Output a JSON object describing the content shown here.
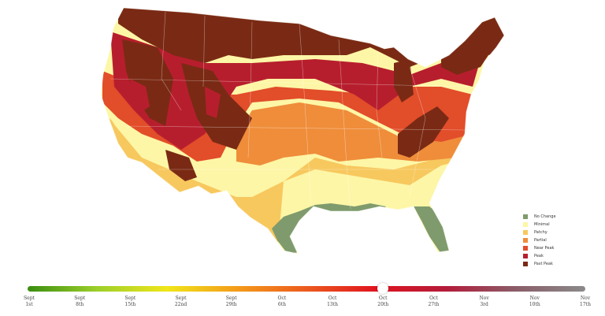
{
  "legend": {
    "items": [
      {
        "label": "No Change",
        "color": "#7f9b6d"
      },
      {
        "label": "Minimal",
        "color": "#fdf6a6"
      },
      {
        "label": "Patchy",
        "color": "#f7c85e"
      },
      {
        "label": "Partial",
        "color": "#ef8d3a"
      },
      {
        "label": "Near Peak",
        "color": "#e24d2a"
      },
      {
        "label": "Peak",
        "color": "#b71e2d"
      },
      {
        "label": "Past Peak",
        "color": "#7a2a14"
      }
    ]
  },
  "timeline": {
    "gradient": [
      "#3a8d10",
      "#9ccf2a",
      "#f0e61a",
      "#f49b1a",
      "#ec5a1e",
      "#e0141f",
      "#b41c3a",
      "#8a5d69",
      "#8a8a8a"
    ],
    "selected_index": 7,
    "ticks": [
      {
        "month": "Sept",
        "day": "1st"
      },
      {
        "month": "Sept",
        "day": "8th"
      },
      {
        "month": "Sept",
        "day": "15th"
      },
      {
        "month": "Sept",
        "day": "22nd"
      },
      {
        "month": "Sept",
        "day": "29th"
      },
      {
        "month": "Oct",
        "day": "6th"
      },
      {
        "month": "Oct",
        "day": "13th"
      },
      {
        "month": "Oct",
        "day": "20th"
      },
      {
        "month": "Oct",
        "day": "27th"
      },
      {
        "month": "Nov",
        "day": "3rd"
      },
      {
        "month": "Nov",
        "day": "10th"
      },
      {
        "month": "Nov",
        "day": "17th"
      }
    ]
  }
}
